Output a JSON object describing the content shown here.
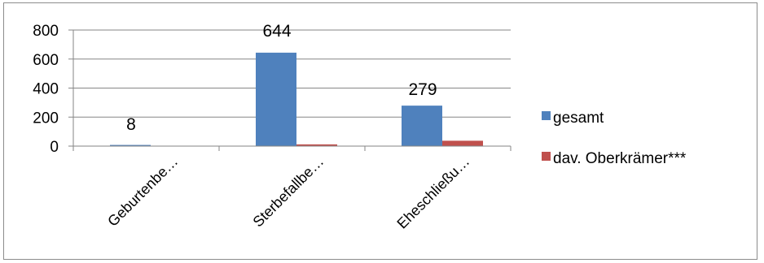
{
  "chart_data": {
    "type": "bar",
    "categories": [
      "Geburtenbe…",
      "Sterbefallbe…",
      "Eheschließu…"
    ],
    "series": [
      {
        "name": "gesamt",
        "values": [
          8,
          644,
          279
        ],
        "color": "#4f81bd",
        "data_labels": [
          "8",
          "644",
          "279"
        ]
      },
      {
        "name": "dav. Oberkrämer***",
        "values": [
          0,
          12,
          37
        ],
        "color": "#c0504d",
        "data_labels": null
      }
    ],
    "ylim": [
      0,
      800
    ],
    "yticks": [
      0,
      200,
      400,
      600,
      800
    ],
    "grid": true,
    "legend": "right"
  }
}
